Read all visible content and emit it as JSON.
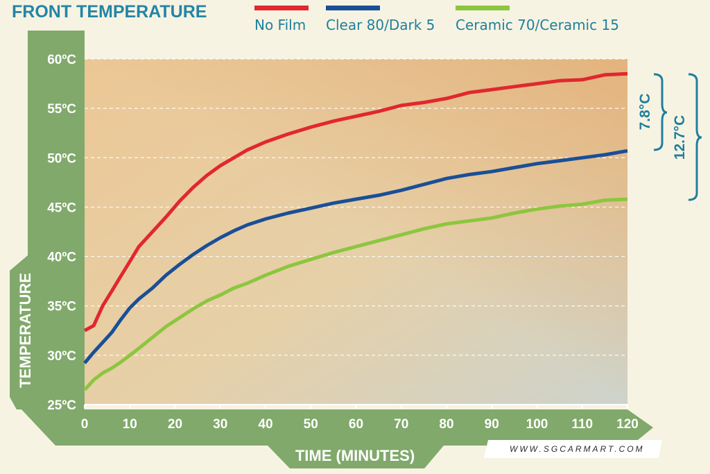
{
  "chart_data": {
    "type": "line",
    "title": "FRONT TEMPERATURE",
    "xlabel": "TIME (MINUTES)",
    "ylabel": "TEMPERATURE",
    "xlim": [
      0,
      120
    ],
    "ylim": [
      25,
      60
    ],
    "x_ticks": [
      0,
      10,
      20,
      30,
      40,
      50,
      60,
      70,
      80,
      90,
      100,
      110,
      120
    ],
    "x_tick_labels": [
      "0",
      "10",
      "20",
      "30",
      "40",
      "50",
      "60",
      "70",
      "80",
      "90",
      "100",
      "110",
      "120"
    ],
    "y_ticks": [
      25,
      30,
      35,
      40,
      45,
      50,
      55,
      60
    ],
    "y_tick_labels": [
      "25ºC",
      "30ºC",
      "35ºC",
      "40ºC",
      "45ºC",
      "50ºC",
      "55ºC",
      "60ºC"
    ],
    "grid": true,
    "legend_position": "top",
    "x": [
      0,
      2,
      4,
      6,
      8,
      10,
      12,
      15,
      18,
      21,
      24,
      27,
      30,
      33,
      36,
      40,
      45,
      50,
      55,
      60,
      65,
      70,
      75,
      80,
      85,
      90,
      95,
      100,
      105,
      110,
      115,
      120
    ],
    "series": [
      {
        "name": "No Film",
        "color": "#e0282e",
        "values": [
          32.5,
          33.0,
          35.0,
          36.5,
          38.0,
          39.5,
          41.0,
          42.5,
          44.0,
          45.6,
          47.0,
          48.2,
          49.2,
          50.0,
          50.8,
          51.6,
          52.4,
          53.1,
          53.7,
          54.2,
          54.7,
          55.3,
          55.6,
          56.0,
          56.6,
          56.9,
          57.2,
          57.5,
          57.8,
          57.9,
          58.4,
          58.5
        ]
      },
      {
        "name": "Clear 80/Dark 5",
        "color": "#1a4f97",
        "values": [
          29.2,
          30.3,
          31.3,
          32.3,
          33.6,
          34.8,
          35.7,
          36.8,
          38.1,
          39.2,
          40.2,
          41.1,
          41.9,
          42.6,
          43.2,
          43.8,
          44.4,
          44.9,
          45.4,
          45.8,
          46.2,
          46.7,
          47.3,
          47.9,
          48.3,
          48.6,
          49.0,
          49.4,
          49.7,
          50.0,
          50.3,
          50.7
        ]
      },
      {
        "name": "Ceramic 70/Ceramic 15",
        "color": "#8cc63f",
        "values": [
          26.5,
          27.5,
          28.2,
          28.7,
          29.3,
          30.0,
          30.7,
          31.8,
          32.9,
          33.8,
          34.7,
          35.5,
          36.1,
          36.8,
          37.3,
          38.1,
          39.0,
          39.7,
          40.4,
          41.0,
          41.6,
          42.2,
          42.8,
          43.3,
          43.6,
          43.9,
          44.4,
          44.8,
          45.1,
          45.3,
          45.7,
          45.8
        ]
      }
    ],
    "annotations": [
      {
        "label": "7.8°C",
        "from": "Clear 80/Dark 5",
        "to": "No Film",
        "from_value": 50.7,
        "to_value": 58.5
      },
      {
        "label": "12.7°C",
        "from": "Ceramic 70/Ceramic 15",
        "to": "No Film",
        "from_value": 45.8,
        "to_value": 58.5
      }
    ]
  },
  "watermark": "WWW.SGCARMART.COM"
}
